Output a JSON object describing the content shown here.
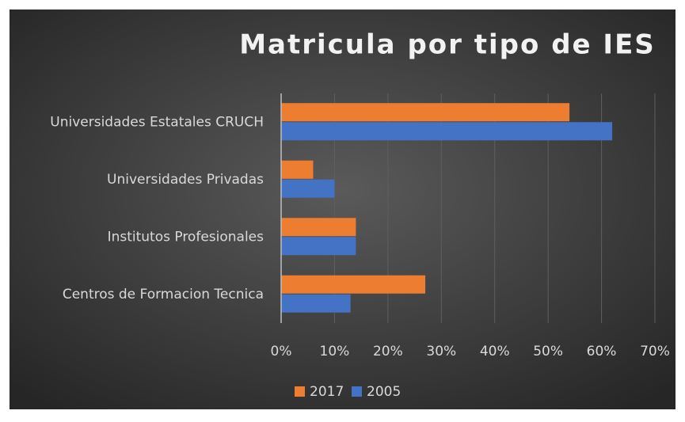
{
  "chart_data": {
    "type": "hbar",
    "title": "Matricula por tipo de IES",
    "categories": [
      "Universidades Estatales CRUCH",
      "Universidades Privadas",
      "Institutos Profesionales",
      "Centros de Formacion Tecnica"
    ],
    "series": [
      {
        "name": "2017",
        "color": "#ed7d31",
        "values": [
          54,
          6,
          14,
          27
        ]
      },
      {
        "name": "2005",
        "color": "#4472c4",
        "values": [
          62,
          10,
          14,
          13
        ]
      }
    ],
    "xlim": [
      0,
      70
    ],
    "xticks": [
      {
        "value": 0,
        "label": "0%"
      },
      {
        "value": 10,
        "label": "10%"
      },
      {
        "value": 20,
        "label": "20%"
      },
      {
        "value": 30,
        "label": "30%"
      },
      {
        "value": 40,
        "label": "40%"
      },
      {
        "value": 50,
        "label": "50%"
      },
      {
        "value": 60,
        "label": "60%"
      },
      {
        "value": 70,
        "label": "70%"
      }
    ],
    "grid": true,
    "legend": "bottom"
  }
}
